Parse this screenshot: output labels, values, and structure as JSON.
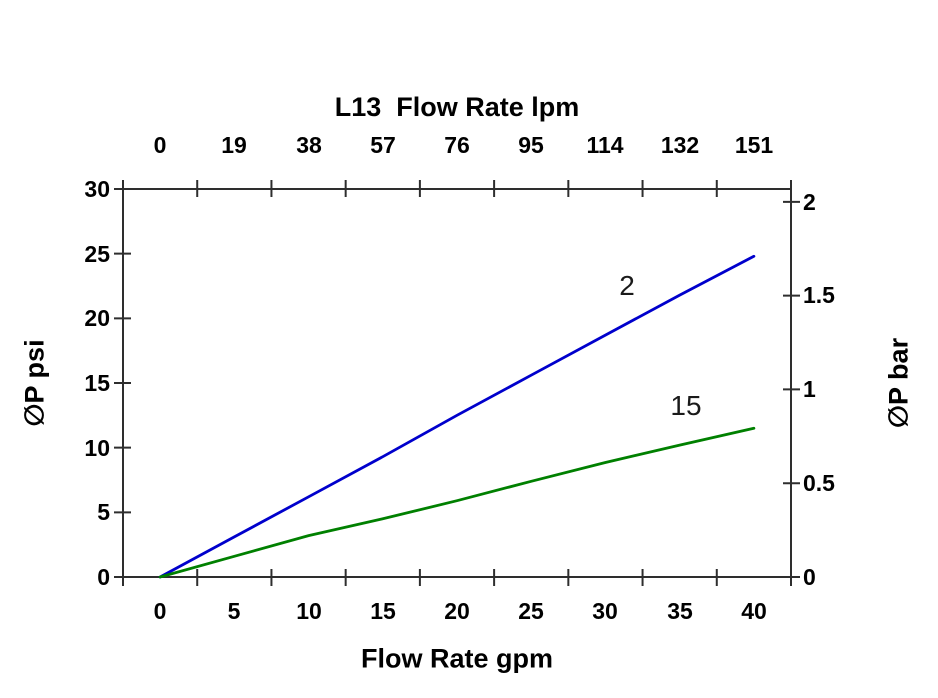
{
  "chart_data": {
    "type": "line",
    "title_top": "L13  Flow Rate lpm",
    "xlabel_bottom": "Flow Rate gpm",
    "ylabel_left": "∅P psi",
    "ylabel_right": "∅P bar",
    "x_gpm": [
      0,
      5,
      10,
      15,
      20,
      25,
      30,
      35,
      40
    ],
    "x_lpm": [
      0,
      19,
      38,
      57,
      76,
      95,
      114,
      132,
      151
    ],
    "yticks_psi": [
      0,
      5,
      10,
      15,
      20,
      25,
      30
    ],
    "yticks_bar": [
      0,
      0.5,
      1,
      1.5,
      2
    ],
    "ylim_psi": [
      0,
      30
    ],
    "psi_per_bar": 14.5038,
    "grid": false,
    "legend": "inline-curve-labels",
    "series": [
      {
        "name": "2",
        "color": "#0000CC",
        "units": "psi",
        "values": [
          0,
          3.1,
          6.2,
          9.3,
          12.5,
          15.6,
          18.7,
          21.8,
          24.8
        ]
      },
      {
        "name": "15",
        "color": "#008000",
        "units": "psi",
        "values": [
          0,
          1.6,
          3.2,
          4.5,
          5.9,
          7.4,
          8.85,
          10.2,
          11.5
        ]
      }
    ],
    "axis_color": "#2e2e2e"
  }
}
